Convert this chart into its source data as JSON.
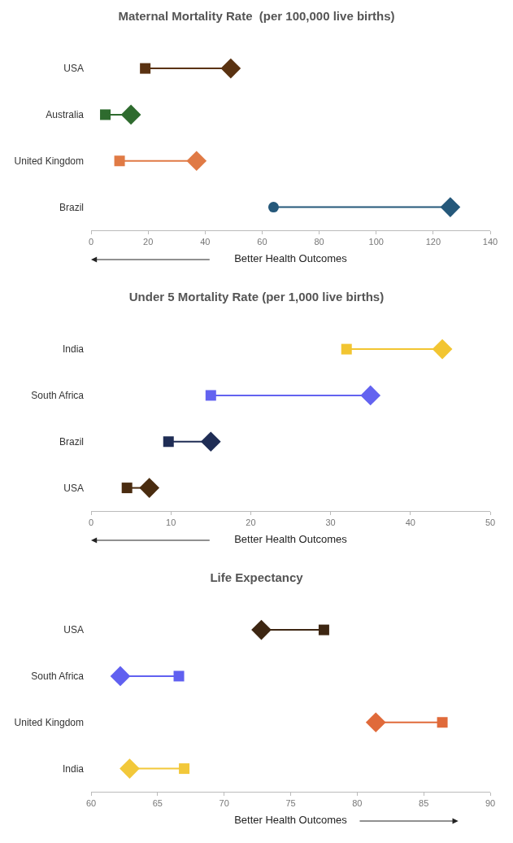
{
  "chart_data": [
    {
      "type": "scatter",
      "orientation": "horizontal",
      "title": "Maternal Mortality Rate  (per 100,000 live births)",
      "xlabel": "Better Health Outcomes",
      "categories": [
        "USA",
        "Australia",
        "United Kingdom",
        "Brazil"
      ],
      "xlim": [
        0,
        140
      ],
      "xticks": [
        0,
        20,
        40,
        60,
        80,
        100,
        120,
        140
      ],
      "grid": false,
      "series": [
        {
          "marker": "square",
          "colors": [
            "#5a3211",
            "#2e6b2e",
            "#e07a45",
            "#25587a"
          ],
          "values": [
            19,
            5,
            10,
            null
          ]
        },
        {
          "marker": "circle",
          "colors": [
            "#5a3211",
            "#2e6b2e",
            "#e07a45",
            "#25587a"
          ],
          "values": [
            null,
            null,
            null,
            64
          ]
        },
        {
          "marker": "diamond",
          "colors": [
            "#5a3211",
            "#2e6b2e",
            "#e07a45",
            "#25587a"
          ],
          "values": [
            49,
            14,
            37,
            126
          ]
        }
      ]
    },
    {
      "type": "scatter",
      "orientation": "horizontal",
      "title": "Under 5 Mortality Rate (per 1,000 live births)",
      "xlabel": "Better Health Outcomes",
      "categories": [
        "India",
        "South Africa",
        "Brazil",
        "USA"
      ],
      "xlim": [
        0,
        50
      ],
      "xticks": [
        0,
        10,
        20,
        30,
        40,
        50
      ],
      "grid": false,
      "series": [
        {
          "marker": "square",
          "colors": [
            "#f2c531",
            "#6363f0",
            "#1f2d55",
            "#4a2c10"
          ],
          "values": [
            32,
            15,
            9.7,
            4.5
          ]
        },
        {
          "marker": "diamond",
          "colors": [
            "#f2c531",
            "#6363f0",
            "#1f2d55",
            "#4a2c10"
          ],
          "values": [
            44,
            35,
            15,
            7.3
          ]
        }
      ]
    },
    {
      "type": "scatter",
      "orientation": "horizontal",
      "title": "Life Expectancy",
      "xlabel": "Better Health Outcomes",
      "categories": [
        "USA",
        "South Africa",
        "United Kingdom",
        "India"
      ],
      "xlim": [
        60,
        90
      ],
      "xticks": [
        60,
        65,
        70,
        75,
        80,
        85,
        90
      ],
      "grid": false,
      "series": [
        {
          "marker": "diamond",
          "colors": [
            "#3d2612",
            "#6060f0",
            "#e06a3a",
            "#f2c83a"
          ],
          "values": [
            72.8,
            62.2,
            81.4,
            62.9
          ]
        },
        {
          "marker": "square",
          "colors": [
            "#3d2612",
            "#6060f0",
            "#e06a3a",
            "#f2c83a"
          ],
          "values": [
            77.5,
            66.6,
            86.4,
            67.0
          ]
        }
      ]
    }
  ]
}
